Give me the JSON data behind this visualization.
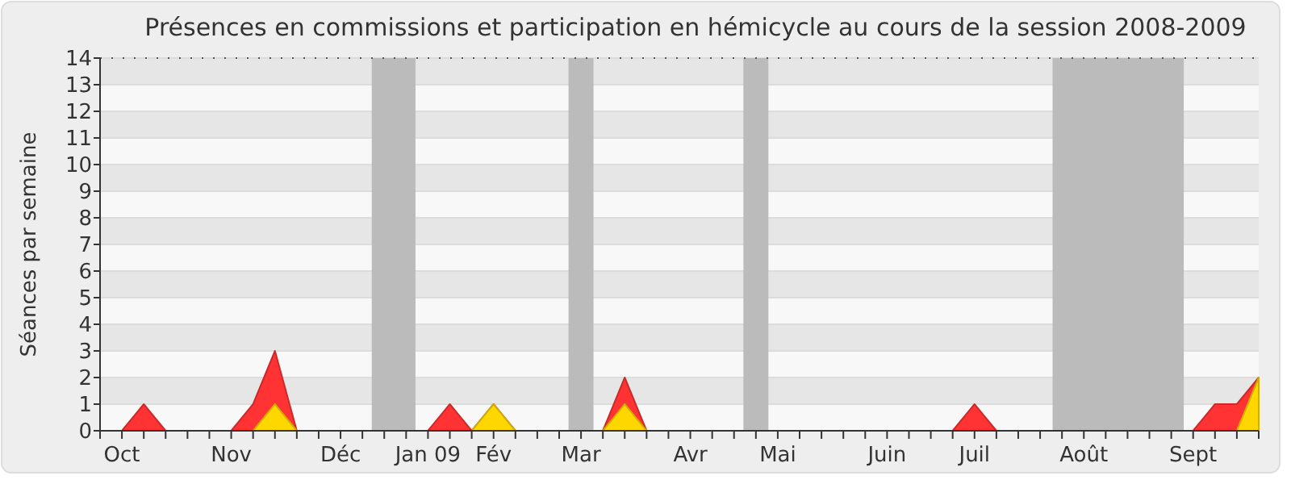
{
  "chart_data": {
    "type": "area",
    "title": "Présences en commissions et participation en hémicycle au cours de la session 2008-2009",
    "ylabel": "Séances par semaine",
    "x": [
      "2008-09-29",
      "2008-10-06",
      "2008-10-13",
      "2008-10-20",
      "2008-10-27",
      "2008-11-03",
      "2008-11-10",
      "2008-11-17",
      "2008-11-24",
      "2008-12-01",
      "2008-12-08",
      "2008-12-15",
      "2008-12-22",
      "2008-12-29",
      "2009-01-05",
      "2009-01-12",
      "2009-01-19",
      "2009-01-26",
      "2009-02-02",
      "2009-02-09",
      "2009-02-16",
      "2009-02-23",
      "2009-03-02",
      "2009-03-09",
      "2009-03-16",
      "2009-03-23",
      "2009-03-30",
      "2009-04-06",
      "2009-04-13",
      "2009-04-20",
      "2009-04-27",
      "2009-05-04",
      "2009-05-11",
      "2009-05-18",
      "2009-05-25",
      "2009-06-01",
      "2009-06-08",
      "2009-06-15",
      "2009-06-22",
      "2009-06-29",
      "2009-07-06",
      "2009-07-13",
      "2009-07-20",
      "2009-07-27",
      "2009-08-03",
      "2009-08-10",
      "2009-08-17",
      "2009-08-24",
      "2009-08-31",
      "2009-09-07",
      "2009-09-14",
      "2009-09-21",
      "2009-09-28",
      "2009-10-05"
    ],
    "series": [
      {
        "color": "#ff3333",
        "values": [
          0,
          0,
          1,
          0,
          0,
          0,
          0,
          1,
          3,
          0,
          0,
          0,
          0,
          0,
          0,
          0,
          1,
          0,
          1,
          0,
          0,
          0,
          0,
          0,
          2,
          0,
          0,
          0,
          0,
          0,
          0,
          0,
          0,
          0,
          0,
          0,
          0,
          0,
          0,
          0,
          1,
          0,
          0,
          0,
          0,
          0,
          0,
          0,
          0,
          0,
          0,
          1,
          1,
          2
        ]
      },
      {
        "color": "#ffd700",
        "values": [
          0,
          0,
          0,
          0,
          0,
          0,
          0,
          0,
          1,
          0,
          0,
          0,
          0,
          0,
          0,
          0,
          0,
          0,
          1,
          0,
          0,
          0,
          0,
          0,
          1,
          0,
          0,
          0,
          0,
          0,
          0,
          0,
          0,
          0,
          0,
          0,
          0,
          0,
          0,
          0,
          0,
          0,
          0,
          0,
          0,
          0,
          0,
          0,
          0,
          0,
          0,
          0,
          0,
          2
        ]
      }
    ],
    "xlim": [
      "2008-09-29",
      "2009-10-05"
    ],
    "ylim": [
      0,
      14
    ],
    "xticks": [
      {
        "value": "2008-10-06",
        "label": "Oct"
      },
      {
        "value": "2008-11-10",
        "label": "Nov"
      },
      {
        "value": "2008-12-15",
        "label": "Déc"
      },
      {
        "value": "2009-01-12",
        "label": "Jan 09"
      },
      {
        "value": "2009-02-02",
        "label": "Fév"
      },
      {
        "value": "2009-03-02",
        "label": "Mar"
      },
      {
        "value": "2009-04-06",
        "label": "Avr"
      },
      {
        "value": "2009-05-04",
        "label": "Mai"
      },
      {
        "value": "2009-06-08",
        "label": "Juin"
      },
      {
        "value": "2009-07-06",
        "label": "Juil"
      },
      {
        "value": "2009-08-10",
        "label": "Août"
      },
      {
        "value": "2009-09-14",
        "label": "Sept"
      }
    ],
    "yticks": [
      0,
      1,
      2,
      3,
      4,
      5,
      6,
      7,
      8,
      9,
      10,
      11,
      12,
      13,
      14
    ],
    "grid": "y",
    "bands": [
      {
        "axis": "x",
        "from": "2008-12-25",
        "to": "2009-01-08",
        "color": "#bbbbbb"
      },
      {
        "axis": "x",
        "from": "2009-02-26",
        "to": "2009-03-06",
        "color": "#bbbbbb"
      },
      {
        "axis": "x",
        "from": "2009-04-23",
        "to": "2009-05-01",
        "color": "#bbbbbb"
      },
      {
        "axis": "x",
        "from": "2009-07-31",
        "to": "2009-09-11",
        "color": "#bbbbbb"
      }
    ]
  }
}
